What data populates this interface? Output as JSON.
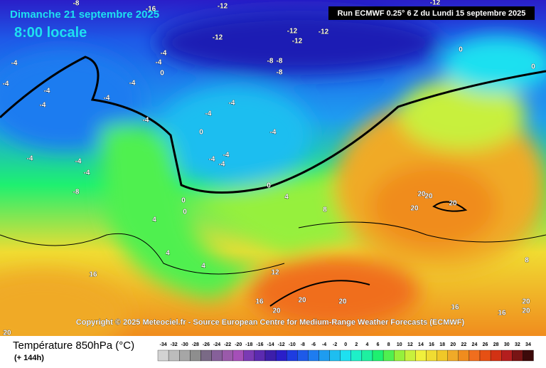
{
  "header": {
    "date": "Dimanche 21 septembre 2025",
    "time": "8:00 locale",
    "run": "Run ECMWF 0.25° 6 Z du Lundi 15 septembre 2025"
  },
  "copyright": "Copyright © 2025 Meteociel.fr - Source European Centre for Medium-Range Weather Forecasts (ECMWF)",
  "legend": {
    "title": "Température 850hPa (°C)",
    "lead": "(+ 144h)",
    "scale": {
      "values": [
        -34,
        -32,
        -30,
        -28,
        -26,
        -24,
        -22,
        -20,
        -18,
        -16,
        -14,
        -12,
        -10,
        -8,
        -6,
        -4,
        -2,
        0,
        2,
        4,
        6,
        8,
        10,
        12,
        14,
        16,
        18,
        20,
        22,
        24,
        26,
        28,
        30,
        32,
        34
      ],
      "colors": [
        "#d2d2d2",
        "#bcbcbc",
        "#a6a6a6",
        "#8e8e8e",
        "#7a6a86",
        "#86609a",
        "#9a5aaa",
        "#a54fb8",
        "#7a3ab4",
        "#5b2ab0",
        "#3c1eaa",
        "#2a1ec8",
        "#1e3ce0",
        "#1e5ae8",
        "#1e7cf0",
        "#1e9cf0",
        "#1ebef0",
        "#1ee0f0",
        "#1ef0c8",
        "#1ef0a0",
        "#1ef070",
        "#50f050",
        "#96f03c",
        "#c8f03c",
        "#f0f03c",
        "#f0dc32",
        "#f0c828",
        "#f0aa28",
        "#f08c1e",
        "#f06e1e",
        "#e65014",
        "#d23214",
        "#b41e1e",
        "#781414",
        "#3c0a0a"
      ]
    }
  },
  "contour_labels": [
    -8,
    -16,
    -12,
    -12,
    -12,
    -12,
    -12,
    -12,
    -8,
    -8,
    -8,
    0,
    -4,
    0,
    -4,
    -4,
    0,
    -4,
    -4,
    -4,
    -4,
    -4,
    -4,
    -4,
    -4,
    0,
    -4,
    -4,
    -4,
    -4,
    -4,
    -4,
    -4,
    -8,
    0,
    0,
    0,
    4,
    4,
    8,
    20,
    20,
    20,
    20,
    4,
    4,
    12,
    16,
    16,
    20,
    20,
    20,
    16,
    16,
    20,
    20,
    20,
    8
  ]
}
